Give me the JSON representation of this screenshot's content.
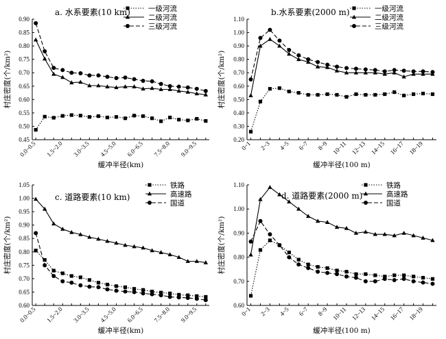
{
  "chart_data": [
    {
      "type": "line",
      "title": "a. 水系要素(10 km)",
      "xlabel": "缓冲半径(km)",
      "ylabel": "村庄密度(个/km²)",
      "ylim": [
        0.45,
        0.9
      ],
      "yticks": [
        "0.45",
        "0.50",
        "0.55",
        "0.60",
        "0.65",
        "0.70",
        "0.75",
        "0.80",
        "0.85",
        "0.90"
      ],
      "x_tick_labels": [
        "0.0~0.5",
        "1.5~2.0",
        "3.0~3.5",
        "4.5~5.0",
        "6.0~6.5",
        "7.5~8.0",
        "9.0~9.5"
      ],
      "x_tick_positions": [
        1,
        4,
        7,
        10,
        13,
        16,
        19
      ],
      "x_count": 20,
      "legend_position": "top-right",
      "series": [
        {
          "name": "一级河流",
          "style": "dotted",
          "marker": "square",
          "values": [
            0.487,
            0.536,
            0.532,
            0.539,
            0.542,
            0.54,
            0.535,
            0.538,
            0.533,
            0.535,
            0.53,
            0.54,
            0.538,
            0.53,
            0.519,
            0.533,
            0.525,
            0.522,
            0.528,
            0.52
          ]
        },
        {
          "name": "二级河流",
          "style": "solid",
          "marker": "triangle",
          "values": [
            0.823,
            0.752,
            0.695,
            0.683,
            0.663,
            0.665,
            0.652,
            0.652,
            0.648,
            0.645,
            0.648,
            0.648,
            0.64,
            0.642,
            0.638,
            0.638,
            0.632,
            0.628,
            0.622,
            0.618
          ]
        },
        {
          "name": "三级河流",
          "style": "dashed",
          "marker": "circle",
          "values": [
            0.885,
            0.78,
            0.718,
            0.71,
            0.7,
            0.698,
            0.69,
            0.69,
            0.685,
            0.68,
            0.682,
            0.676,
            0.67,
            0.668,
            0.658,
            0.65,
            0.648,
            0.645,
            0.64,
            0.632
          ]
        }
      ]
    },
    {
      "type": "line",
      "title": "b.水系要素(2000 m)",
      "xlabel": "缓冲半径(100 m)",
      "ylabel": "村庄密度(个/km²)",
      "ylim": [
        0.2,
        1.1
      ],
      "yticks": [
        "0.20",
        "0.30",
        "0.40",
        "0.50",
        "0.60",
        "0.70",
        "0.80",
        "0.90",
        "1.00",
        "1.10"
      ],
      "x_tick_labels": [
        "0~1",
        "2~3",
        "4~5",
        "6~7",
        "8~9",
        "10~11",
        "12~13",
        "14~15",
        "16~17",
        "18~19"
      ],
      "x_tick_positions": [
        1,
        3,
        5,
        7,
        9,
        11,
        13,
        15,
        17,
        19
      ],
      "x_count": 20,
      "legend_position": "top-right",
      "series": [
        {
          "name": "一级河流",
          "style": "dotted",
          "marker": "square",
          "values": [
            0.26,
            0.485,
            0.58,
            0.585,
            0.56,
            0.55,
            0.535,
            0.535,
            0.54,
            0.535,
            0.52,
            0.54,
            0.535,
            0.535,
            0.54,
            0.555,
            0.53,
            0.54,
            0.545,
            0.54
          ]
        },
        {
          "name": "二级河流",
          "style": "solid",
          "marker": "triangle",
          "values": [
            0.53,
            0.9,
            0.95,
            0.9,
            0.84,
            0.8,
            0.78,
            0.745,
            0.74,
            0.715,
            0.7,
            0.7,
            0.7,
            0.7,
            0.69,
            0.7,
            0.67,
            0.69,
            0.69,
            0.69
          ]
        },
        {
          "name": "三级河流",
          "style": "dashed",
          "marker": "circle",
          "values": [
            0.65,
            0.96,
            1.02,
            0.94,
            0.87,
            0.83,
            0.8,
            0.78,
            0.76,
            0.745,
            0.735,
            0.73,
            0.725,
            0.72,
            0.71,
            0.72,
            0.715,
            0.71,
            0.71,
            0.705
          ]
        }
      ]
    },
    {
      "type": "line",
      "title": "c. 道路要素(10 km)",
      "xlabel": "缓冲半径(km)",
      "ylabel": "村庄密度(个/km²)",
      "ylim": [
        0.6,
        1.05
      ],
      "yticks": [
        "0.60",
        "0.65",
        "0.70",
        "0.75",
        "0.80",
        "0.85",
        "0.90",
        "0.95",
        "1.00",
        "1.05"
      ],
      "x_tick_labels": [
        "0.0~0.5",
        "1.5~2.0",
        "3.0~3.5",
        "4.5~5.0",
        "6.0~6.5",
        "7.5~8.0",
        "9.0~9.5"
      ],
      "x_tick_positions": [
        1,
        4,
        7,
        10,
        13,
        16,
        19
      ],
      "x_count": 20,
      "legend_position": "top-right",
      "series": [
        {
          "name": "铁路",
          "style": "dotted",
          "marker": "square",
          "values": [
            0.805,
            0.77,
            0.73,
            0.72,
            0.71,
            0.705,
            0.695,
            0.685,
            0.678,
            0.672,
            0.668,
            0.662,
            0.658,
            0.652,
            0.648,
            0.645,
            0.64,
            0.638,
            0.635,
            0.632
          ]
        },
        {
          "name": "高速路",
          "style": "solid",
          "marker": "triangle",
          "values": [
            0.997,
            0.96,
            0.905,
            0.885,
            0.873,
            0.865,
            0.855,
            0.848,
            0.84,
            0.833,
            0.825,
            0.82,
            0.815,
            0.805,
            0.798,
            0.79,
            0.78,
            0.765,
            0.765,
            0.76
          ]
        },
        {
          "name": "国道",
          "style": "dashed",
          "marker": "circle",
          "values": [
            0.87,
            0.75,
            0.71,
            0.69,
            0.685,
            0.675,
            0.67,
            0.668,
            0.66,
            0.655,
            0.652,
            0.65,
            0.645,
            0.642,
            0.638,
            0.632,
            0.63,
            0.628,
            0.625,
            0.62
          ]
        }
      ]
    },
    {
      "type": "line",
      "title": "d. 道路要素(2000 m)",
      "xlabel": "缓冲半径(100 m)",
      "ylabel": "村庄密度(个/km²)",
      "ylim": [
        0.6,
        1.1
      ],
      "yticks": [
        "0.60",
        "0.70",
        "0.80",
        "0.90",
        "1.00",
        "1.10"
      ],
      "x_tick_labels": [
        "0~1",
        "2~3",
        "4~5",
        "6~7",
        "8~9",
        "10~11",
        "12~13",
        "14~15",
        "16~17",
        "18~19"
      ],
      "x_tick_positions": [
        1,
        3,
        5,
        7,
        9,
        11,
        13,
        15,
        17,
        19
      ],
      "x_count": 20,
      "legend_position": "top-right",
      "series": [
        {
          "name": "铁路",
          "style": "dotted",
          "marker": "square",
          "values": [
            0.64,
            0.83,
            0.87,
            0.85,
            0.82,
            0.79,
            0.77,
            0.76,
            0.755,
            0.745,
            0.74,
            0.73,
            0.73,
            0.725,
            0.72,
            0.725,
            0.725,
            0.72,
            0.715,
            0.71
          ]
        },
        {
          "name": "高速路",
          "style": "solid",
          "marker": "triangle",
          "values": [
            0.81,
            1.04,
            1.09,
            1.06,
            1.03,
            1.0,
            0.97,
            0.95,
            0.945,
            0.925,
            0.92,
            0.9,
            0.905,
            0.895,
            0.895,
            0.89,
            0.9,
            0.89,
            0.88,
            0.87
          ]
        },
        {
          "name": "国道",
          "style": "dashed",
          "marker": "circle",
          "values": [
            0.865,
            0.95,
            0.895,
            0.85,
            0.8,
            0.77,
            0.755,
            0.74,
            0.735,
            0.73,
            0.72,
            0.715,
            0.7,
            0.7,
            0.71,
            0.705,
            0.71,
            0.7,
            0.695,
            0.69
          ]
        }
      ]
    }
  ]
}
